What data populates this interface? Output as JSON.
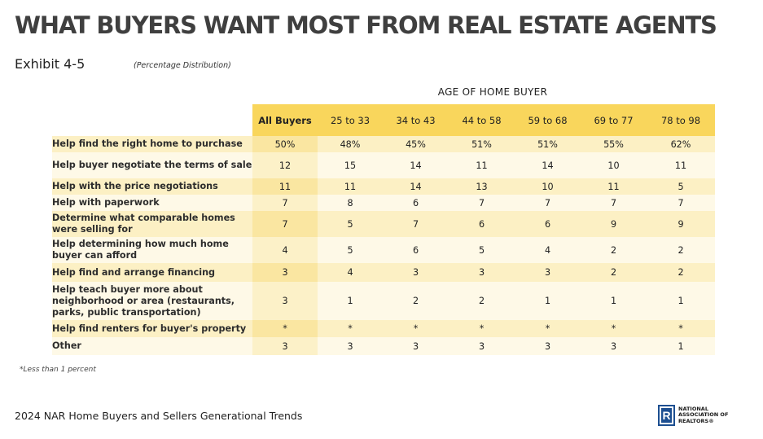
{
  "header": {
    "title": "WHAT BUYERS WANT MOST FROM REAL ESTATE AGENTS",
    "exhibit": "Exhibit 4-5",
    "distribution_note": "(Percentage Distribution)",
    "group_header": "AGE OF HOME BUYER"
  },
  "table": {
    "columns": [
      "All Buyers",
      "25 to 33",
      "34 to 43",
      "44 to 58",
      "59 to 68",
      "69 to 77",
      "78 to 98"
    ],
    "rows": [
      {
        "label": "Help find the right home to purchase",
        "values": [
          "50%",
          "48%",
          "45%",
          "51%",
          "51%",
          "55%",
          "62%"
        ]
      },
      {
        "label": "Help buyer negotiate the terms of sale",
        "values": [
          "12",
          "15",
          "14",
          "11",
          "14",
          "10",
          "11"
        ]
      },
      {
        "label": "Help with the price negotiations",
        "values": [
          "11",
          "11",
          "14",
          "13",
          "10",
          "11",
          "5"
        ]
      },
      {
        "label": "Help with paperwork",
        "values": [
          "7",
          "8",
          "6",
          "7",
          "7",
          "7",
          "7"
        ]
      },
      {
        "label": "Determine what comparable homes were selling for",
        "values": [
          "7",
          "5",
          "7",
          "6",
          "6",
          "9",
          "9"
        ]
      },
      {
        "label": "Help determining how much home buyer can afford",
        "values": [
          "4",
          "5",
          "6",
          "5",
          "4",
          "2",
          "2"
        ]
      },
      {
        "label": "Help find and arrange financing",
        "values": [
          "3",
          "4",
          "3",
          "3",
          "3",
          "2",
          "2"
        ]
      },
      {
        "label": "Help teach buyer more about neighborhood or area (restaurants, parks, public transportation)",
        "values": [
          "3",
          "1",
          "2",
          "2",
          "1",
          "1",
          "1"
        ]
      },
      {
        "label": "Help find renters for buyer's property",
        "values": [
          "*",
          "*",
          "*",
          "*",
          "*",
          "*",
          "*"
        ]
      },
      {
        "label": "Other",
        "values": [
          "3",
          "3",
          "3",
          "3",
          "3",
          "3",
          "1"
        ]
      }
    ]
  },
  "footnote": "*Less than 1 percent",
  "footer": {
    "source": "2024 NAR Home Buyers and Sellers Generational Trends",
    "logo_mark": "R",
    "logo_lines": [
      "NATIONAL",
      "ASSOCIATION OF",
      "REALTORS®"
    ]
  },
  "colors": {
    "header_band": "#f9d65c",
    "row_odd": "#fcf0c4",
    "row_even": "#fef9e7",
    "logo_blue": "#1d4f91"
  }
}
